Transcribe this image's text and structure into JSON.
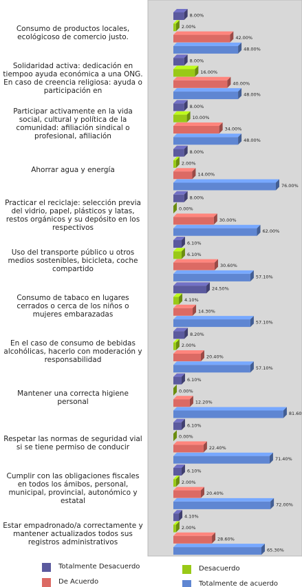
{
  "chart_data": {
    "type": "bar",
    "orientation": "horizontal",
    "categories": [
      "Consumo de productos locales, ecológicoso de comercio justo.",
      "Solidaridad activa: dedicación en tiempoo ayuda económica a una ONG. En caso de creencia religiosa: ayuda  o participación en",
      "Participar activamente en la vida social, cultural y política de la comunidad: afiliación sindical o profesional, afiliación",
      "Ahorrar agua y energía",
      "Practicar el reciclaje: selección previa del vidrio, papel, plásticos y latas, restos orgánicos y su depósito en los respectivos",
      "Uso del transporte público u otros medios sostenibles, bicicleta, coche compartido",
      "Consumo de tabaco en lugares cerrados o cerca de los niños o mujeres embarazadas",
      "En el caso de consumo de bebidas alcohólicas, hacerlo con moderación y responsabilidad",
      "Mantener una correcta higiene personal",
      "Respetar las normas de seguridad vial si se tiene permiso de conducir",
      "Cumplir con las obligaciones fiscales en todos los ámibos, personal, municipal, provincial, autonómico y estatal",
      "Estar empadronado/a correctamente y mantener actualizados todos sus registros administrativos"
    ],
    "series": [
      {
        "name": "Totalmente Desacuerdo",
        "color": "#5b5a9e",
        "values": [
          8,
          8,
          8,
          8,
          8,
          6.1,
          24.5,
          8.2,
          6.1,
          6.1,
          6.1,
          4.1
        ],
        "value_labels": [
          "8.00%",
          "8.00%",
          "8.00%",
          "8.00%",
          "8.00%",
          "6.10%",
          "24.50%",
          "8.20%",
          "6.10%",
          "6.10%",
          "6.10%",
          "4.10%"
        ]
      },
      {
        "name": "Desacuerdo",
        "color": "#99c917",
        "values": [
          2,
          16,
          10,
          2,
          0,
          6.1,
          4.1,
          2,
          0,
          0,
          2,
          2
        ],
        "value_labels": [
          "2.00%",
          "16.00%",
          "10.00%",
          "2.00%",
          "0.00%",
          "6.10%",
          "4.10%",
          "2.00%",
          "0.00%",
          "0.00%",
          "2.00%",
          "2.00%"
        ]
      },
      {
        "name": "De Acuerdo",
        "color": "#dc6a64",
        "values": [
          42,
          40,
          34,
          14,
          30,
          30.6,
          14.3,
          20.4,
          12.2,
          22.4,
          20.4,
          28.6
        ],
        "value_labels": [
          "42.00%",
          "40.00%",
          "34.00%",
          "14.00%",
          "30.00%",
          "30.60%",
          "14.30%",
          "20.40%",
          "12.20%",
          "22.40%",
          "20.40%",
          "28.60%"
        ]
      },
      {
        "name": "Totalmente de acuerdo",
        "color": "#5f86d2",
        "values": [
          48,
          48,
          48,
          76,
          62,
          57.1,
          57.1,
          57.1,
          81.6,
          71.4,
          72,
          65.3
        ],
        "value_labels": [
          "48.00%",
          "48.00%",
          "48.00%",
          "76.00%",
          "62.00%",
          "57.10%",
          "57.10%",
          "57.10%",
          "81.60%",
          "71.40%",
          "72.00%",
          "65.30%"
        ]
      }
    ],
    "xlim": [
      0,
      100
    ]
  }
}
